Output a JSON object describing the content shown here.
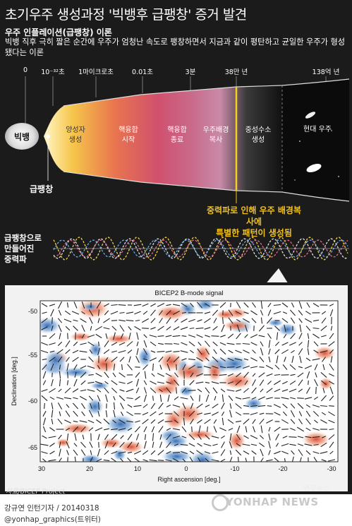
{
  "header": {
    "title": "초기우주 생성과정 '빅뱅후 급팽창' 증거 발견",
    "theory_title": "우주 인플레이션(급팽창) 이론",
    "theory_desc": "빅뱅 직후 극히 짧은 순간에 우주가 엄청난 속도로 팽창하면서 지금과 같이 평탄하고 균일한 우주가 형성됐다는 이론"
  },
  "timeline": {
    "ticks": [
      "0",
      "10⁻³²초",
      "1마이크로초",
      "0.01초",
      "3분",
      "38만 년",
      "138억 년"
    ],
    "bigbang": "빅뱅",
    "inflation": "급팽창",
    "stages": [
      "양성자\n생성",
      "핵융합\n시작",
      "핵융합\n종료",
      "우주배경\n복사",
      "중성수소\n생성",
      "현대 우주"
    ]
  },
  "callout": "중력파로 인해 우주 배경복사에\n특별한 패턴이 생성됨",
  "gravity_wave_label": "급팽창으로\n만들어진\n중력파",
  "map": {
    "title": "BICEP2 B-mode signal",
    "xlabel": "Right ascension [deg.]",
    "ylabel": "Declination [deg.]",
    "xticks": [
      "30",
      "20",
      "10",
      "0",
      "-10",
      "-20",
      "-30"
    ],
    "yticks": [
      "-50",
      "-55",
      "-60",
      "-65"
    ]
  },
  "footer": {
    "credit": "자료/BICEP Project",
    "logo": "연합뉴스",
    "author": "강규연 인턴기자 / 20140318",
    "twitter": "@yonhap_graphics(트위터)",
    "watermark": "YONHAP NEWS"
  },
  "colors": {
    "callout": "#f2c21a",
    "background": "#1b1b1b"
  }
}
